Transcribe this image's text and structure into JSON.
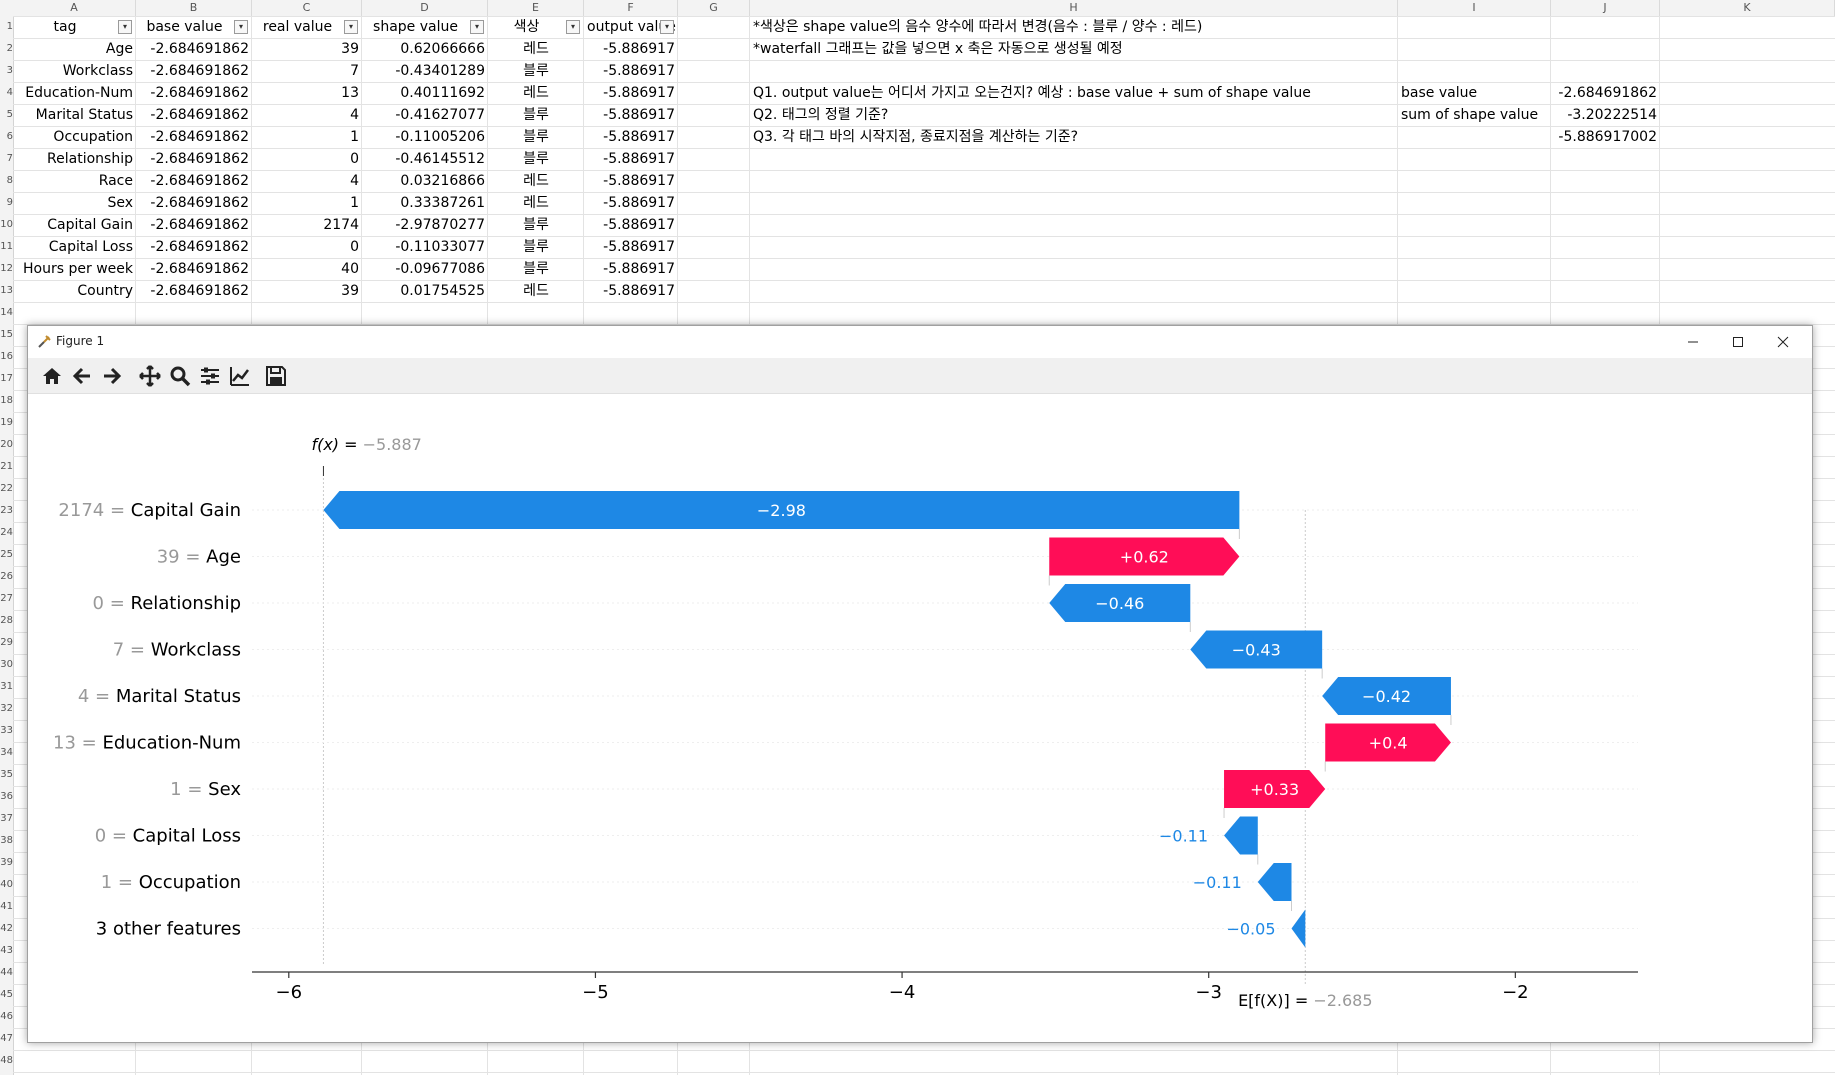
{
  "sheet": {
    "columns": [
      "A",
      "B",
      "C",
      "D",
      "E",
      "F",
      "G",
      "H",
      "I",
      "J",
      "K"
    ],
    "row_numbers": [
      "1",
      "2",
      "3",
      "4",
      "5",
      "6",
      "7",
      "8",
      "9",
      "10",
      "11",
      "12",
      "13",
      "14",
      "15",
      "16",
      "17",
      "18",
      "19",
      "20",
      "21",
      "22",
      "23",
      "24",
      "25",
      "26",
      "27",
      "28",
      "29",
      "30",
      "31",
      "32",
      "33",
      "34",
      "35",
      "36",
      "37",
      "38",
      "39",
      "40",
      "41",
      "42",
      "43",
      "44",
      "45",
      "46",
      "47",
      "48"
    ],
    "headers": [
      "tag",
      "base value",
      "real value",
      "shape value",
      "색상",
      "output value"
    ],
    "rows": [
      [
        "Age",
        "-2.684691862",
        "39",
        "0.62066666",
        "레드",
        "-5.886917"
      ],
      [
        "Workclass",
        "-2.684691862",
        "7",
        "-0.43401289",
        "블루",
        "-5.886917"
      ],
      [
        "Education-Num",
        "-2.684691862",
        "13",
        "0.40111692",
        "레드",
        "-5.886917"
      ],
      [
        "Marital Status",
        "-2.684691862",
        "4",
        "-0.41627077",
        "블루",
        "-5.886917"
      ],
      [
        "Occupation",
        "-2.684691862",
        "1",
        "-0.11005206",
        "블루",
        "-5.886917"
      ],
      [
        "Relationship",
        "-2.684691862",
        "0",
        "-0.46145512",
        "블루",
        "-5.886917"
      ],
      [
        "Race",
        "-2.684691862",
        "4",
        "0.03216866",
        "레드",
        "-5.886917"
      ],
      [
        "Sex",
        "-2.684691862",
        "1",
        "0.33387261",
        "레드",
        "-5.886917"
      ],
      [
        "Capital Gain",
        "-2.684691862",
        "2174",
        "-2.97870277",
        "블루",
        "-5.886917"
      ],
      [
        "Capital Loss",
        "-2.684691862",
        "0",
        "-0.11033077",
        "블루",
        "-5.886917"
      ],
      [
        "Hours per week",
        "-2.684691862",
        "40",
        "-0.09677086",
        "블루",
        "-5.886917"
      ],
      [
        "Country",
        "-2.684691862",
        "39",
        "0.01754525",
        "레드",
        "-5.886917"
      ]
    ],
    "notes": [
      "*색상은 shape value의 음수 양수에 따라서 변경(음수 : 블루 / 양수 : 레드)",
      "*waterfall 그래프는 값을 넣으면 x 축은 자동으로 생성될 예정",
      "",
      "Q1. output value는 어디서 가지고 오는건지? 예상 : base value + sum of shape value",
      "Q2. 태그의 정렬 기준?",
      "Q3. 각 태그 바의 시작지점, 종료지점을 계산하는 기준?"
    ],
    "side_labels": [
      "base value",
      "sum of shape value"
    ],
    "side_values": [
      "-2.684691862",
      "-3.20222514",
      "-5.886917002"
    ]
  },
  "window": {
    "title": "Figure 1",
    "icons": [
      "home-icon",
      "back-arrow-icon",
      "forward-arrow-icon",
      "pan-icon",
      "zoom-icon",
      "configure-icon",
      "edit-axis-icon",
      "save-icon"
    ],
    "controls": [
      "minimize-icon",
      "maximize-icon",
      "close-icon"
    ]
  },
  "chart_data": {
    "type": "waterfall",
    "base_value": -2.685,
    "output_value": -5.887,
    "fx_label_prefix": "f(x) = ",
    "fx_label_value": "−5.887",
    "efx_label_prefix": "E[f(X)] = ",
    "efx_label_value": "−2.685",
    "features": [
      {
        "value": "2174",
        "name": "Capital Gain",
        "shap": -2.98,
        "label": "−2.98",
        "start": -2.9,
        "end": -5.887
      },
      {
        "value": "39",
        "name": "Age",
        "shap": 0.62,
        "label": "+0.62",
        "start": -3.52,
        "end": -2.9
      },
      {
        "value": "0",
        "name": "Relationship",
        "shap": -0.46,
        "label": "−0.46",
        "start": -3.06,
        "end": -3.52
      },
      {
        "value": "7",
        "name": "Workclass",
        "shap": -0.43,
        "label": "−0.43",
        "start": -2.63,
        "end": -3.06
      },
      {
        "value": "4",
        "name": "Marital Status",
        "shap": -0.42,
        "label": "−0.42",
        "start": -2.21,
        "end": -2.63
      },
      {
        "value": "13",
        "name": "Education-Num",
        "shap": 0.4,
        "label": "+0.4",
        "start": -2.62,
        "end": -2.21
      },
      {
        "value": "1",
        "name": "Sex",
        "shap": 0.33,
        "label": "+0.33",
        "start": -2.95,
        "end": -2.62
      },
      {
        "value": "0",
        "name": "Capital Loss",
        "shap": -0.11,
        "label": "−0.11",
        "start": -2.84,
        "end": -2.95
      },
      {
        "value": "1",
        "name": "Occupation",
        "shap": -0.11,
        "label": "−0.11",
        "start": -2.73,
        "end": -2.84
      },
      {
        "value": "",
        "name": "3 other features",
        "shap": -0.05,
        "label": "−0.05",
        "start": -2.685,
        "end": -2.73
      }
    ],
    "xlim": [
      -6.12,
      -1.6
    ],
    "xticks": [
      -6,
      -5,
      -4,
      -3,
      -2
    ],
    "xtick_labels": [
      "−6",
      "−5",
      "−4",
      "−3",
      "−2"
    ],
    "colors": {
      "positive": "#ff0d57",
      "negative": "#1e88e5",
      "grey": "#999999"
    }
  }
}
